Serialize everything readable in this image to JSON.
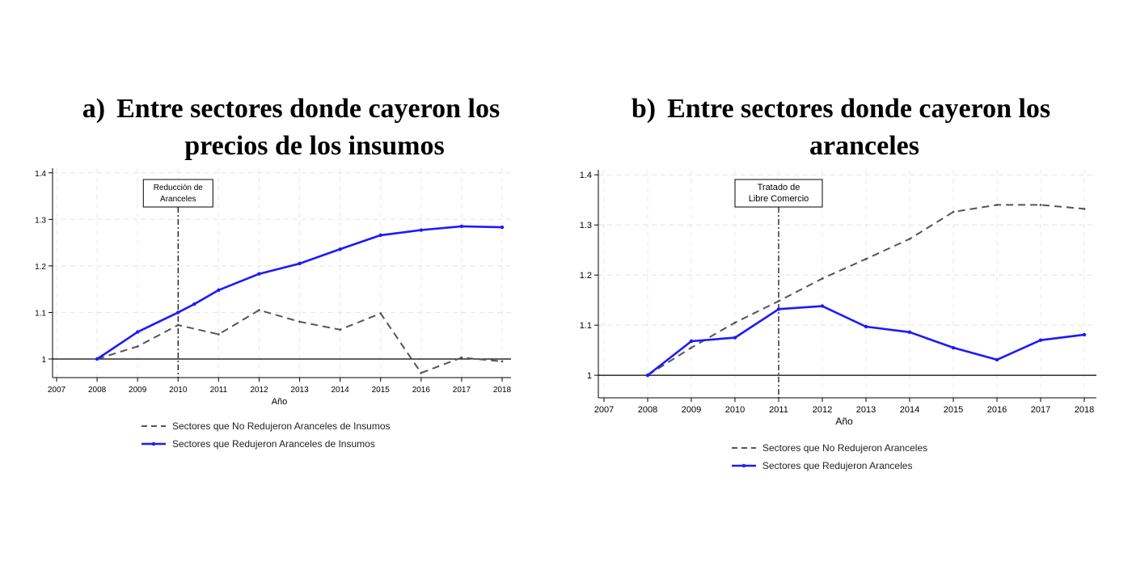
{
  "chart_data": [
    {
      "type": "line",
      "panel_label": "a)",
      "title_lines": [
        "Entre sectores donde cayeron los",
        "precios de los insumos"
      ],
      "xlabel": "Año",
      "ylabel": "",
      "x": [
        2007,
        2008,
        2009,
        2010,
        2011,
        2012,
        2013,
        2014,
        2015,
        2016,
        2017,
        2018
      ],
      "x_ticks": [
        "2007",
        "2008",
        "2009",
        "2010",
        "2011",
        "2012",
        "2013",
        "2014",
        "2015",
        "2016",
        "2017",
        "2018"
      ],
      "xlim": [
        2007,
        2018
      ],
      "y_ticks": [
        "1",
        "1.1",
        "1.2",
        "1.3",
        "1.4"
      ],
      "ylim": [
        0.96,
        1.41
      ],
      "reference_y": 1,
      "grid": true,
      "legend_position": "bottom",
      "annotation": {
        "x": 2010,
        "lines": [
          "Reducción de",
          "Aranceles"
        ]
      },
      "series": [
        {
          "name": "Sectores que No Redujeron Aranceles de Insumos",
          "style": "dashed",
          "color": "#555555",
          "x": [
            2008,
            2009,
            2010,
            2011,
            2012,
            2013,
            2014,
            2015,
            2016,
            2017,
            2018
          ],
          "values": [
            1.0,
            1.027,
            1.073,
            1.053,
            1.105,
            1.08,
            1.063,
            1.098,
            0.97,
            1.003,
            0.995
          ]
        },
        {
          "name": "Sectores que Redujeron Aranceles de Insumos",
          "style": "solid",
          "color": "#1a1aff",
          "x": [
            2008,
            2009,
            2010,
            2010.4,
            2011,
            2012,
            2013,
            2014,
            2015,
            2016,
            2017,
            2018
          ],
          "values": [
            1.0,
            1.058,
            1.1,
            1.118,
            1.148,
            1.183,
            1.205,
            1.236,
            1.266,
            1.277,
            1.285,
            1.283
          ]
        }
      ]
    },
    {
      "type": "line",
      "panel_label": "b)",
      "title_lines": [
        "Entre sectores donde cayeron los",
        "aranceles"
      ],
      "xlabel": "Año",
      "ylabel": "",
      "x": [
        2007,
        2008,
        2009,
        2010,
        2011,
        2012,
        2013,
        2014,
        2015,
        2016,
        2017,
        2018
      ],
      "x_ticks": [
        "2007",
        "2008",
        "2009",
        "2010",
        "2011",
        "2012",
        "2013",
        "2014",
        "2015",
        "2016",
        "2017",
        "2018"
      ],
      "xlim": [
        2007,
        2018
      ],
      "y_ticks": [
        "1",
        "1.1",
        "1.2",
        "1.3",
        "1.4"
      ],
      "ylim": [
        0.955,
        1.41
      ],
      "reference_y": 1,
      "grid": true,
      "legend_position": "bottom",
      "annotation": {
        "x": 2011,
        "lines": [
          "Tratado de",
          "Libre Comercio"
        ]
      },
      "series": [
        {
          "name": "Sectores que No Redujeron Aranceles",
          "style": "dashed",
          "color": "#555555",
          "x": [
            2008,
            2009,
            2010,
            2011,
            2012,
            2013,
            2014,
            2015,
            2016,
            2017,
            2018
          ],
          "values": [
            1.0,
            1.055,
            1.105,
            1.148,
            1.193,
            1.232,
            1.272,
            1.326,
            1.34,
            1.34,
            1.332
          ]
        },
        {
          "name": "Sectores que Redujeron Aranceles",
          "style": "solid",
          "color": "#1a1aff",
          "x": [
            2008,
            2009,
            2010,
            2011,
            2012,
            2013,
            2014,
            2015,
            2016,
            2017,
            2018
          ],
          "values": [
            1.0,
            1.068,
            1.075,
            1.132,
            1.138,
            1.097,
            1.086,
            1.055,
            1.031,
            1.07,
            1.081
          ]
        }
      ]
    }
  ]
}
